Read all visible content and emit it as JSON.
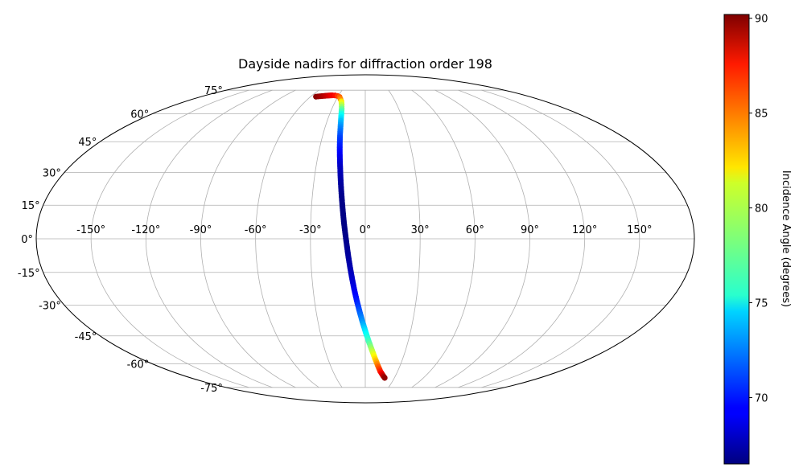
{
  "chart_data": {
    "type": "scatter",
    "projection": "mollweide",
    "title": "Dayside nadirs for diffraction order 198",
    "grid": true,
    "longitude_ticks": [
      "-150°",
      "-120°",
      "-90°",
      "-60°",
      "-30°",
      "0°",
      "30°",
      "60°",
      "90°",
      "120°",
      "150°"
    ],
    "latitude_ticks": [
      "-75°",
      "-60°",
      "-45°",
      "-30°",
      "-15°",
      "0°",
      "15°",
      "30°",
      "45°",
      "60°",
      "75°"
    ],
    "colorbar": {
      "label": "Incidence Angle (degrees)",
      "colormap": "jet",
      "range": [
        66.5,
        90.2
      ],
      "ticks": [
        "70",
        "75",
        "80",
        "85",
        "90"
      ]
    },
    "points": [
      {
        "lon": -54,
        "lat": 70.5,
        "c": 90
      },
      {
        "lon": -50,
        "lat": 70.8,
        "c": 89.5
      },
      {
        "lon": -46,
        "lat": 71.0,
        "c": 89
      },
      {
        "lon": -43,
        "lat": 71.2,
        "c": 88.5
      },
      {
        "lon": -40,
        "lat": 71.3,
        "c": 88
      },
      {
        "lon": -37,
        "lat": 71.4,
        "c": 87.5
      },
      {
        "lon": -34,
        "lat": 71.3,
        "c": 87
      },
      {
        "lon": -31,
        "lat": 71.0,
        "c": 86
      },
      {
        "lon": -28,
        "lat": 70.3,
        "c": 85
      },
      {
        "lon": -26,
        "lat": 69.0,
        "c": 84
      },
      {
        "lon": -24,
        "lat": 67.5,
        "c": 82
      },
      {
        "lon": -22.5,
        "lat": 65.5,
        "c": 80
      },
      {
        "lon": -21.2,
        "lat": 63.0,
        "c": 78
      },
      {
        "lon": -20.2,
        "lat": 60.0,
        "c": 76
      },
      {
        "lon": -19.2,
        "lat": 56.0,
        "c": 74
      },
      {
        "lon": -18.4,
        "lat": 52.0,
        "c": 72.5
      },
      {
        "lon": -17.6,
        "lat": 47.0,
        "c": 71
      },
      {
        "lon": -16.8,
        "lat": 42.0,
        "c": 70
      },
      {
        "lon": -16.0,
        "lat": 37.0,
        "c": 69
      },
      {
        "lon": -15.2,
        "lat": 32.0,
        "c": 68
      },
      {
        "lon": -14.5,
        "lat": 27.0,
        "c": 67.5
      },
      {
        "lon": -13.8,
        "lat": 22.0,
        "c": 67
      },
      {
        "lon": -13.1,
        "lat": 17.0,
        "c": 66.7
      },
      {
        "lon": -12.4,
        "lat": 12.0,
        "c": 66.6
      },
      {
        "lon": -11.7,
        "lat": 7.0,
        "c": 66.6
      },
      {
        "lon": -10.9,
        "lat": 2.0,
        "c": 66.7
      },
      {
        "lon": -10.1,
        "lat": -3.0,
        "c": 66.9
      },
      {
        "lon": -9.3,
        "lat": -8.0,
        "c": 67.2
      },
      {
        "lon": -8.4,
        "lat": -13.0,
        "c": 67.6
      },
      {
        "lon": -7.4,
        "lat": -18.0,
        "c": 68.2
      },
      {
        "lon": -6.3,
        "lat": -23.0,
        "c": 69
      },
      {
        "lon": -5.0,
        "lat": -28.0,
        "c": 70
      },
      {
        "lon": -3.5,
        "lat": -33.0,
        "c": 71.5
      },
      {
        "lon": -1.8,
        "lat": -38.0,
        "c": 73
      },
      {
        "lon": 0.2,
        "lat": -43.0,
        "c": 75
      },
      {
        "lon": 2.5,
        "lat": -48.0,
        "c": 77
      },
      {
        "lon": 5.0,
        "lat": -52.5,
        "c": 79.5
      },
      {
        "lon": 7.8,
        "lat": -57.0,
        "c": 82
      },
      {
        "lon": 10.8,
        "lat": -61.0,
        "c": 84.5
      },
      {
        "lon": 14.0,
        "lat": -64.5,
        "c": 86.5
      },
      {
        "lon": 17.5,
        "lat": -67.0,
        "c": 88.5
      },
      {
        "lon": 20.0,
        "lat": -68.5,
        "c": 89.8
      }
    ]
  }
}
